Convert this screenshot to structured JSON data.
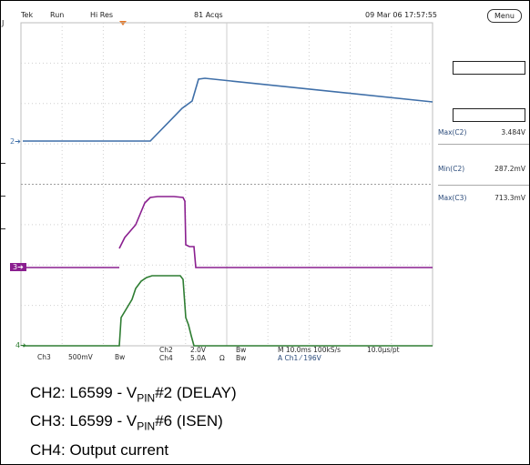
{
  "header": {
    "brand": "Tek",
    "run_state": "Run",
    "acq_mode": "Hi Res",
    "acq_count": "81 Acqs",
    "datetime": "09 Mar 06 17:57:55",
    "menu_label": "Menu"
  },
  "markers": {
    "left_top": "J",
    "ch2": "2",
    "ch3": "3",
    "ch4": "4"
  },
  "measurements": [
    {
      "label": "Max(C2)",
      "value": "3.484V"
    },
    {
      "label": "Min(C2)",
      "value": "287.2mV"
    },
    {
      "label": "Max(C3)",
      "value": "713.3mV"
    }
  ],
  "bottom": {
    "ch3_label": "Ch3",
    "ch3_scale": "500mV",
    "ch3_bw": "Bw",
    "ch2_label": "Ch2",
    "ch2_scale": "2.0V",
    "ch2_bw": "Bw",
    "ch4_label": "Ch4",
    "ch4_scale": "5.0A",
    "ch4_unit": "Ω",
    "ch4_bw": "Bw",
    "timebase": "M 10.0ms 100kS/s",
    "trigger": "A Ch1 ⁄ 196V",
    "resolution": "10.0μs/pt"
  },
  "caption": {
    "line1_prefix": "CH2: L6599 - V",
    "line1_sub": "PIN",
    "line1_suffix": "#2 (DELAY)",
    "line2_prefix": "CH3: L6599 - V",
    "line2_sub": "PIN",
    "line2_suffix": "#6 (ISEN)",
    "line3": "CH4: Output current"
  },
  "colors": {
    "ch2": "#3f6fa8",
    "ch3": "#8a1f8f",
    "ch4": "#2e7d32",
    "trigger": "#e87722",
    "grid": "#cfcfcf"
  }
}
